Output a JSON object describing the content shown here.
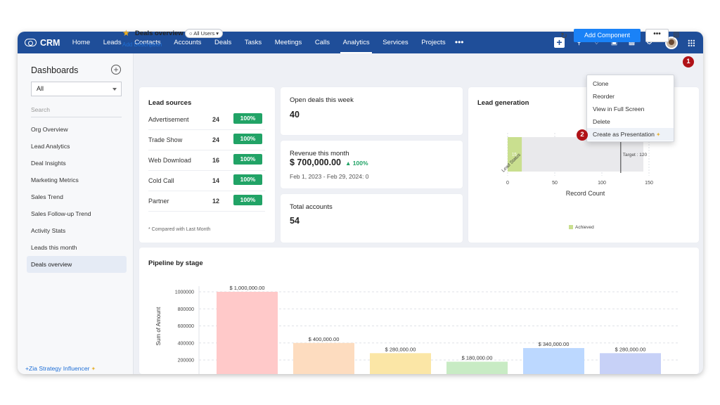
{
  "app": {
    "name": "CRM"
  },
  "nav": {
    "items": [
      "Home",
      "Leads",
      "Contacts",
      "Accounts",
      "Deals",
      "Tasks",
      "Meetings",
      "Calls",
      "Analytics",
      "Services",
      "Projects"
    ],
    "active": "Analytics",
    "more": "•••",
    "icons": [
      "plus-icon",
      "search-icon",
      "bell-icon",
      "calendar-icon",
      "inbox-icon",
      "gear-icon",
      "avatar",
      "apps-grid-icon"
    ]
  },
  "sidebar": {
    "title": "Dashboards",
    "filter_value": "All",
    "search_placeholder": "Search",
    "items": [
      "Org Overview",
      "Lead Analytics",
      "Deal Insights",
      "Marketing Metrics",
      "Sales Trend",
      "Sales Follow-up Trend",
      "Activity Stats",
      "Leads this month",
      "Deals overview"
    ],
    "active_item": "Deals overview",
    "zia": "+Zia Strategy Influencer"
  },
  "header": {
    "title": "Deals overview",
    "users_filter": "All Users",
    "add_description": "Add Description",
    "add_component": "Add Component",
    "more": "•••"
  },
  "menu": {
    "items": [
      "Clone",
      "Reorder",
      "View in Full Screen",
      "Delete",
      "Create as Presentation"
    ],
    "highlighted": "Create as Presentation"
  },
  "badges": [
    "1",
    "2"
  ],
  "lead_sources": {
    "title": "Lead sources",
    "rows": [
      {
        "name": "Advertisement",
        "value": "24",
        "pct": "100%"
      },
      {
        "name": "Trade Show",
        "value": "24",
        "pct": "100%"
      },
      {
        "name": "Web Download",
        "value": "16",
        "pct": "100%"
      },
      {
        "name": "Cold Call",
        "value": "14",
        "pct": "100%"
      },
      {
        "name": "Partner",
        "value": "12",
        "pct": "100%"
      }
    ],
    "note": "* Compared with Last Month"
  },
  "open_deals": {
    "label": "Open deals this week",
    "value": "40"
  },
  "revenue": {
    "label": "Revenue this month",
    "value": "$ 700,000.00",
    "delta": "100%",
    "period": "Feb 1, 2023 - Feb 29, 2024: 0"
  },
  "total_accounts": {
    "label": "Total accounts",
    "value": "54"
  },
  "chart_data": [
    {
      "type": "bar",
      "title": "Lead generation",
      "orientation": "horizontal",
      "categories": [
        "Lead Status"
      ],
      "series": [
        {
          "name": "Achieved",
          "values": [
            15
          ]
        }
      ],
      "target": 120,
      "target_label": "Target : 120",
      "xlabel": "Record Count",
      "xlim": [
        0,
        150
      ],
      "xticks": [
        "0",
        "50",
        "100",
        "150"
      ],
      "legend": "bottom-center",
      "color": "#c9df8f"
    },
    {
      "type": "bar",
      "title": "Pipeline by stage",
      "ylabel": "Sum of Amount",
      "ylim": [
        0,
        1000000
      ],
      "yticks": [
        "1000000",
        "800000",
        "600000",
        "400000",
        "200000"
      ],
      "values": [
        1000000,
        400000,
        280000,
        180000,
        340000,
        280000
      ],
      "labels": [
        "$ 1,000,000.00",
        "$ 400,000.00",
        "$ 280,000.00",
        "$ 180,000.00",
        "$ 340,000.00",
        "$ 280,000.00"
      ],
      "colors": [
        "#ffc9c9",
        "#fddcbf",
        "#fbe6a6",
        "#c8ebc4",
        "#bcd8ff",
        "#c7d1f7"
      ],
      "grid": true
    }
  ]
}
